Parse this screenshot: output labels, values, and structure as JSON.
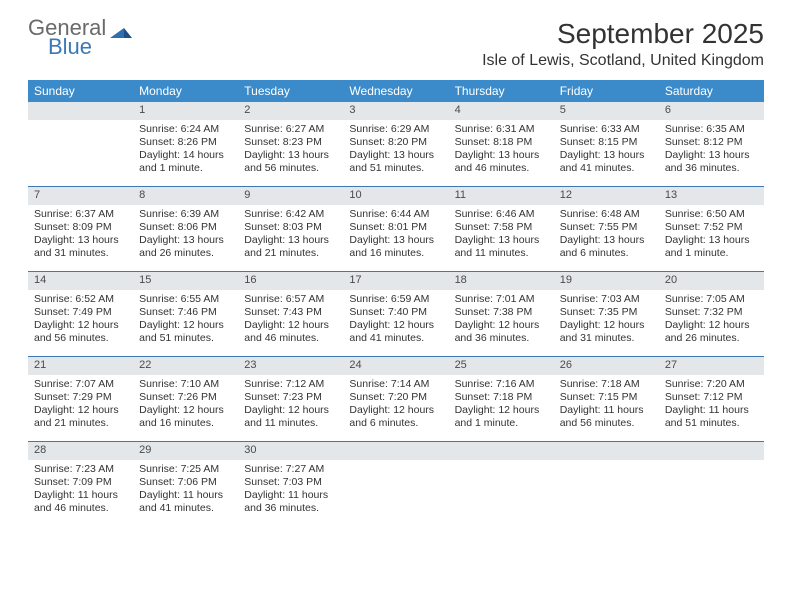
{
  "logo": {
    "line1": "General",
    "line2": "Blue"
  },
  "title": "September 2025",
  "location": "Isle of Lewis, Scotland, United Kingdom",
  "colors": {
    "header_bg": "#3b8bca",
    "week_divider": "#3b78b5",
    "daynum_bg": "#e4e7ea",
    "text": "#333333",
    "logo_gray": "#6a6a6a",
    "logo_blue": "#3b78b5"
  },
  "days_of_week": [
    "Sunday",
    "Monday",
    "Tuesday",
    "Wednesday",
    "Thursday",
    "Friday",
    "Saturday"
  ],
  "weeks": [
    [
      null,
      {
        "n": "1",
        "sunrise": "Sunrise: 6:24 AM",
        "sunset": "Sunset: 8:26 PM",
        "daylight": "Daylight: 14 hours and 1 minute."
      },
      {
        "n": "2",
        "sunrise": "Sunrise: 6:27 AM",
        "sunset": "Sunset: 8:23 PM",
        "daylight": "Daylight: 13 hours and 56 minutes."
      },
      {
        "n": "3",
        "sunrise": "Sunrise: 6:29 AM",
        "sunset": "Sunset: 8:20 PM",
        "daylight": "Daylight: 13 hours and 51 minutes."
      },
      {
        "n": "4",
        "sunrise": "Sunrise: 6:31 AM",
        "sunset": "Sunset: 8:18 PM",
        "daylight": "Daylight: 13 hours and 46 minutes."
      },
      {
        "n": "5",
        "sunrise": "Sunrise: 6:33 AM",
        "sunset": "Sunset: 8:15 PM",
        "daylight": "Daylight: 13 hours and 41 minutes."
      },
      {
        "n": "6",
        "sunrise": "Sunrise: 6:35 AM",
        "sunset": "Sunset: 8:12 PM",
        "daylight": "Daylight: 13 hours and 36 minutes."
      }
    ],
    [
      {
        "n": "7",
        "sunrise": "Sunrise: 6:37 AM",
        "sunset": "Sunset: 8:09 PM",
        "daylight": "Daylight: 13 hours and 31 minutes."
      },
      {
        "n": "8",
        "sunrise": "Sunrise: 6:39 AM",
        "sunset": "Sunset: 8:06 PM",
        "daylight": "Daylight: 13 hours and 26 minutes."
      },
      {
        "n": "9",
        "sunrise": "Sunrise: 6:42 AM",
        "sunset": "Sunset: 8:03 PM",
        "daylight": "Daylight: 13 hours and 21 minutes."
      },
      {
        "n": "10",
        "sunrise": "Sunrise: 6:44 AM",
        "sunset": "Sunset: 8:01 PM",
        "daylight": "Daylight: 13 hours and 16 minutes."
      },
      {
        "n": "11",
        "sunrise": "Sunrise: 6:46 AM",
        "sunset": "Sunset: 7:58 PM",
        "daylight": "Daylight: 13 hours and 11 minutes."
      },
      {
        "n": "12",
        "sunrise": "Sunrise: 6:48 AM",
        "sunset": "Sunset: 7:55 PM",
        "daylight": "Daylight: 13 hours and 6 minutes."
      },
      {
        "n": "13",
        "sunrise": "Sunrise: 6:50 AM",
        "sunset": "Sunset: 7:52 PM",
        "daylight": "Daylight: 13 hours and 1 minute."
      }
    ],
    [
      {
        "n": "14",
        "sunrise": "Sunrise: 6:52 AM",
        "sunset": "Sunset: 7:49 PM",
        "daylight": "Daylight: 12 hours and 56 minutes."
      },
      {
        "n": "15",
        "sunrise": "Sunrise: 6:55 AM",
        "sunset": "Sunset: 7:46 PM",
        "daylight": "Daylight: 12 hours and 51 minutes."
      },
      {
        "n": "16",
        "sunrise": "Sunrise: 6:57 AM",
        "sunset": "Sunset: 7:43 PM",
        "daylight": "Daylight: 12 hours and 46 minutes."
      },
      {
        "n": "17",
        "sunrise": "Sunrise: 6:59 AM",
        "sunset": "Sunset: 7:40 PM",
        "daylight": "Daylight: 12 hours and 41 minutes."
      },
      {
        "n": "18",
        "sunrise": "Sunrise: 7:01 AM",
        "sunset": "Sunset: 7:38 PM",
        "daylight": "Daylight: 12 hours and 36 minutes."
      },
      {
        "n": "19",
        "sunrise": "Sunrise: 7:03 AM",
        "sunset": "Sunset: 7:35 PM",
        "daylight": "Daylight: 12 hours and 31 minutes."
      },
      {
        "n": "20",
        "sunrise": "Sunrise: 7:05 AM",
        "sunset": "Sunset: 7:32 PM",
        "daylight": "Daylight: 12 hours and 26 minutes."
      }
    ],
    [
      {
        "n": "21",
        "sunrise": "Sunrise: 7:07 AM",
        "sunset": "Sunset: 7:29 PM",
        "daylight": "Daylight: 12 hours and 21 minutes."
      },
      {
        "n": "22",
        "sunrise": "Sunrise: 7:10 AM",
        "sunset": "Sunset: 7:26 PM",
        "daylight": "Daylight: 12 hours and 16 minutes."
      },
      {
        "n": "23",
        "sunrise": "Sunrise: 7:12 AM",
        "sunset": "Sunset: 7:23 PM",
        "daylight": "Daylight: 12 hours and 11 minutes."
      },
      {
        "n": "24",
        "sunrise": "Sunrise: 7:14 AM",
        "sunset": "Sunset: 7:20 PM",
        "daylight": "Daylight: 12 hours and 6 minutes."
      },
      {
        "n": "25",
        "sunrise": "Sunrise: 7:16 AM",
        "sunset": "Sunset: 7:18 PM",
        "daylight": "Daylight: 12 hours and 1 minute."
      },
      {
        "n": "26",
        "sunrise": "Sunrise: 7:18 AM",
        "sunset": "Sunset: 7:15 PM",
        "daylight": "Daylight: 11 hours and 56 minutes."
      },
      {
        "n": "27",
        "sunrise": "Sunrise: 7:20 AM",
        "sunset": "Sunset: 7:12 PM",
        "daylight": "Daylight: 11 hours and 51 minutes."
      }
    ],
    [
      {
        "n": "28",
        "sunrise": "Sunrise: 7:23 AM",
        "sunset": "Sunset: 7:09 PM",
        "daylight": "Daylight: 11 hours and 46 minutes."
      },
      {
        "n": "29",
        "sunrise": "Sunrise: 7:25 AM",
        "sunset": "Sunset: 7:06 PM",
        "daylight": "Daylight: 11 hours and 41 minutes."
      },
      {
        "n": "30",
        "sunrise": "Sunrise: 7:27 AM",
        "sunset": "Sunset: 7:03 PM",
        "daylight": "Daylight: 11 hours and 36 minutes."
      },
      null,
      null,
      null,
      null
    ]
  ]
}
